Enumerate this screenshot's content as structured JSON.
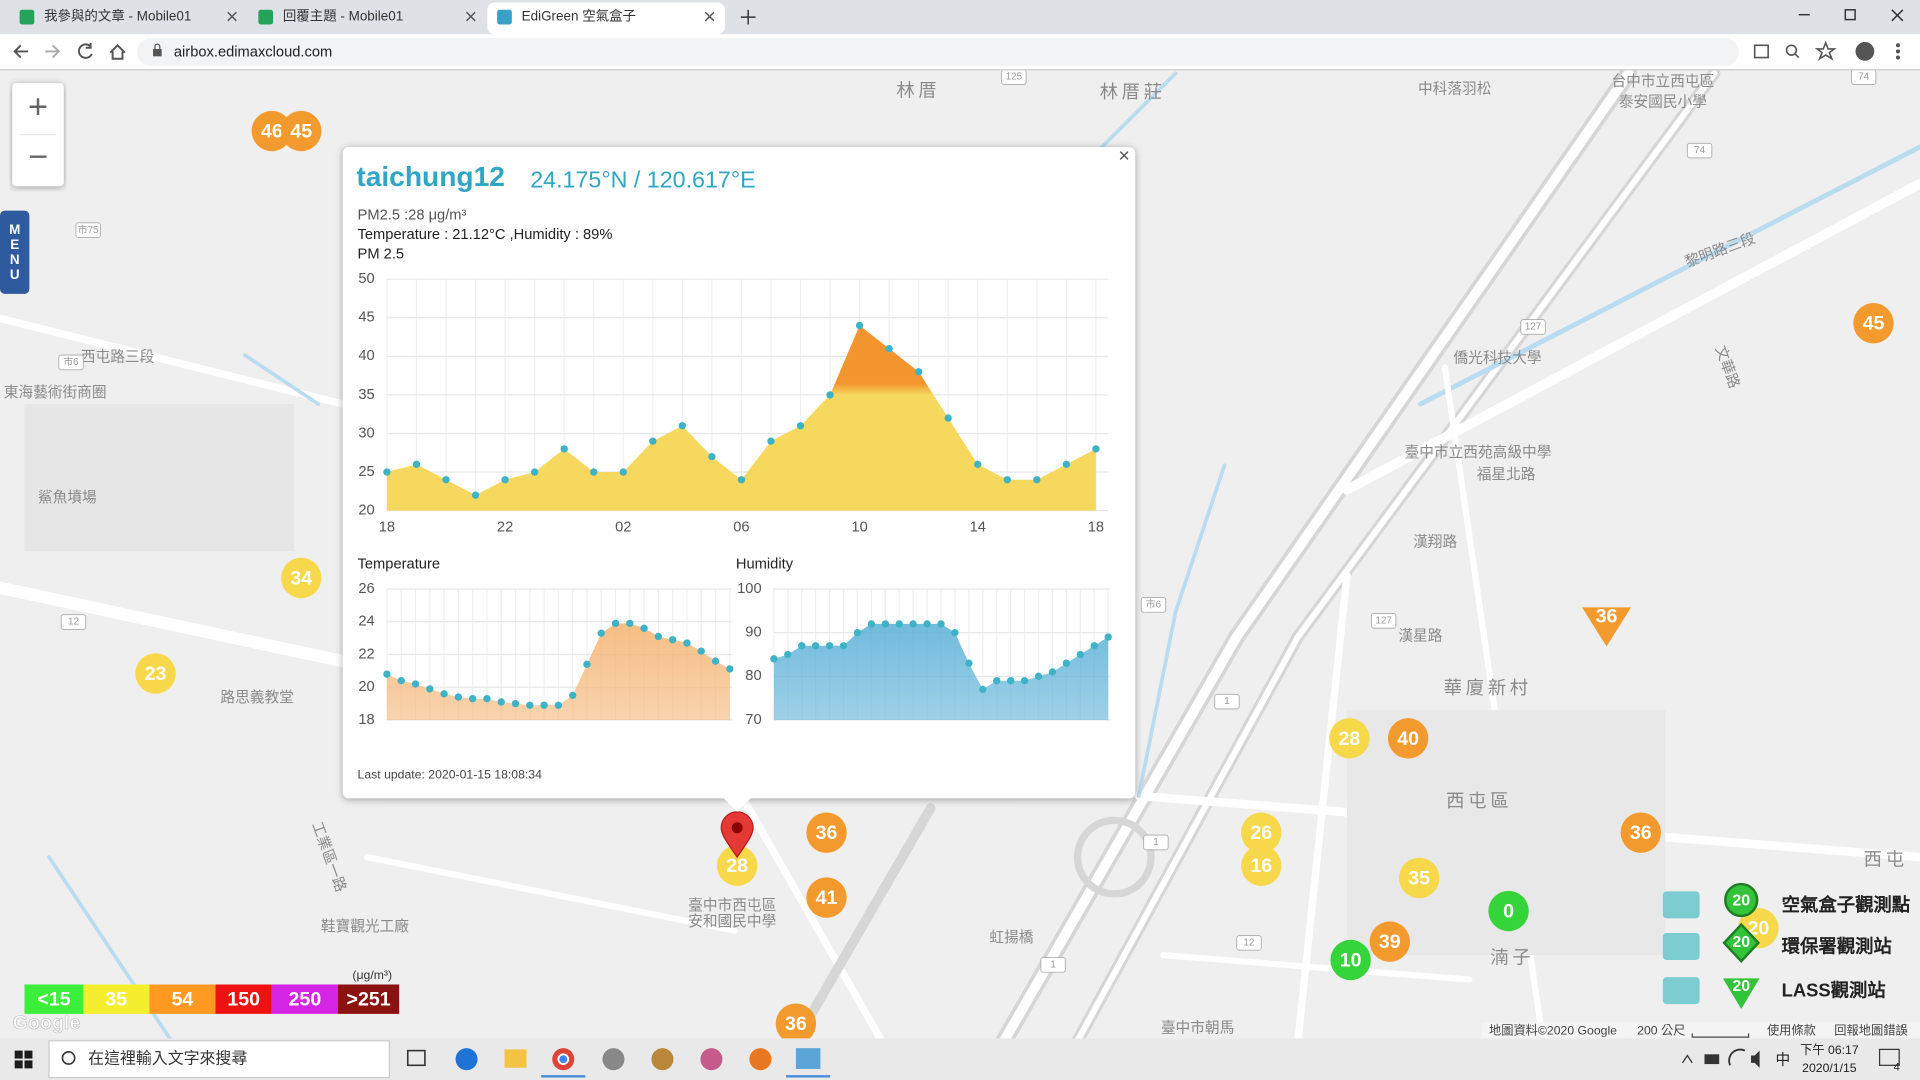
{
  "browser": {
    "tabs": [
      "我參與的文章 - Mobile01",
      "回覆主題 - Mobile01",
      "EdiGreen 空氣盒子"
    ],
    "url": "airbox.edimaxcloud.com"
  },
  "map": {
    "zoom_in": "+",
    "zoom_out": "−",
    "menu": "MENU",
    "labels": [
      "林厝",
      "林厝莊",
      "中科落羽松",
      "台中市立西屯區",
      "泰安國民小學",
      "黎明路三段",
      "僑光科技大學",
      "臺中市立西苑高級中學",
      "福星北路",
      "漢翔路",
      "華廈新村",
      "西屯區",
      "西屯路三段",
      "東海藝術街商圈",
      "鯊魚墳場",
      "路思義教堂",
      "臺中市西屯區",
      "安和國民中學",
      "鞋寶觀光工廠",
      "虹揚橋",
      "湳子",
      "西屯",
      "臺中市朝馬",
      "工業區一路",
      "文華路",
      "漢星路"
    ],
    "road_numbers": [
      "125",
      "127",
      "74",
      "74",
      "127",
      "市75",
      "市6",
      "市6",
      "12",
      "12",
      "1",
      "1",
      "1"
    ],
    "markers": [
      {
        "value": 46,
        "color": "#f39a2e"
      },
      {
        "value": 45,
        "color": "#f39a2e"
      },
      {
        "value": 45,
        "color": "#f39a2e"
      },
      {
        "value": 34,
        "color": "#f6d84a"
      },
      {
        "value": 23,
        "color": "#f6d84a"
      },
      {
        "value": 36,
        "color": "#f39a2e"
      },
      {
        "value": 28,
        "color": "#f6d84a"
      },
      {
        "value": 40,
        "color": "#f39a2e"
      },
      {
        "value": 26,
        "color": "#f6d84a"
      },
      {
        "value": 16,
        "color": "#f6d84a"
      },
      {
        "value": 36,
        "color": "#f39a2e"
      },
      {
        "value": 28,
        "color": "#f6d84a"
      },
      {
        "value": 41,
        "color": "#f39a2e"
      },
      {
        "value": 36,
        "color": "#f39a2e"
      },
      {
        "value": 35,
        "color": "#f6d84a"
      },
      {
        "value": 0,
        "color": "#35d43a"
      },
      {
        "value": 39,
        "color": "#f39a2e"
      },
      {
        "value": 10,
        "color": "#35d43a"
      },
      {
        "value": 36,
        "color": "#f39a2e"
      },
      {
        "value": 20,
        "color": "#f6d84a"
      }
    ],
    "attribution": "地圖資料©2020 Google",
    "scale": "200 公尺",
    "terms": "使用條款",
    "report": "回報地圖錯誤",
    "google": "Google"
  },
  "popup": {
    "close": "×",
    "station": "taichung12",
    "coords": "24.175°N / 120.617°E",
    "pm25_text": "PM2.5 :28 μg/m³",
    "weather_text": "Temperature : 21.12°C ,Humidity : 89%",
    "last_update": "Last update: 2020-01-15 18:08:34",
    "pm25_chart": {
      "type": "area",
      "title": "PM 2.5",
      "categories": [
        "18",
        null,
        null,
        null,
        "22",
        null,
        null,
        null,
        "02",
        null,
        null,
        null,
        "06",
        null,
        null,
        null,
        "10",
        null,
        null,
        null,
        "14",
        null,
        null,
        null,
        "18"
      ],
      "values": [
        25,
        26,
        24,
        22,
        24,
        25,
        28,
        25,
        25,
        29,
        31,
        27,
        24,
        29,
        31,
        35,
        44,
        41,
        38,
        32,
        26,
        24,
        24,
        26,
        28
      ],
      "ylim": [
        20,
        50
      ],
      "yticks": [
        20,
        25,
        30,
        35,
        40,
        45,
        50
      ],
      "color": "#f6d85e",
      "high_color": "#f3952e",
      "grid": true
    },
    "temperature_chart": {
      "type": "area",
      "title": "Temperature",
      "values": [
        20.8,
        20.4,
        20.2,
        19.9,
        19.6,
        19.4,
        19.3,
        19.3,
        19.1,
        19.0,
        18.9,
        18.9,
        18.9,
        19.5,
        21.4,
        23.3,
        23.9,
        23.9,
        23.6,
        23.1,
        22.9,
        22.7,
        22.2,
        21.6,
        21.12
      ],
      "ylim": [
        18,
        26
      ],
      "yticks": [
        18,
        20,
        22,
        24,
        26
      ],
      "color": "#f4b676",
      "grid": true
    },
    "humidity_chart": {
      "type": "area",
      "title": "Humidity",
      "values": [
        84,
        85,
        87,
        87,
        87,
        87,
        90,
        92,
        92,
        92,
        92,
        92,
        92,
        90,
        83,
        77,
        79,
        79,
        79,
        80,
        81,
        83,
        85,
        87,
        89
      ],
      "ylim": [
        70,
        100
      ],
      "yticks": [
        70,
        80,
        90,
        100
      ],
      "color": "#5fb2d8",
      "grid": true
    }
  },
  "legend": {
    "unit": "(μg/m³)",
    "scale": [
      {
        "label": "<15",
        "color": "#3bef3b"
      },
      {
        "label": "35",
        "color": "#f5ee2e"
      },
      {
        "label": "54",
        "color": "#ff9922"
      },
      {
        "label": "150",
        "color": "#ee1111"
      },
      {
        "label": "250",
        "color": "#d424e4"
      },
      {
        "label": ">251",
        "color": "#8c1212"
      }
    ],
    "stations": [
      {
        "icon_value": "20",
        "name": "空氣盒子觀測點"
      },
      {
        "icon_value": "20",
        "name": "環保署觀測站"
      },
      {
        "icon_value": "20",
        "name": "LASS觀測站"
      }
    ]
  },
  "taskbar": {
    "search": "在這裡輸入文字來搜尋",
    "time": "下午 06:17",
    "date": "2020/1/15",
    "ime": "中",
    "notifications": "4"
  }
}
